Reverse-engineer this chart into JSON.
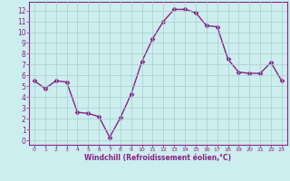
{
  "x": [
    0,
    1,
    2,
    3,
    4,
    5,
    6,
    7,
    8,
    9,
    10,
    11,
    12,
    13,
    14,
    15,
    16,
    17,
    18,
    19,
    20,
    21,
    22,
    23
  ],
  "y": [
    5.5,
    4.8,
    5.5,
    5.4,
    2.6,
    2.5,
    2.2,
    0.3,
    2.1,
    4.3,
    7.3,
    9.4,
    11.0,
    12.1,
    12.1,
    11.8,
    10.6,
    10.5,
    7.5,
    6.3,
    6.2,
    6.2,
    7.2,
    5.5
  ],
  "line_color": "#882288",
  "marker": "D",
  "marker_size": 2.5,
  "bg_color": "#cceeee",
  "grid_color": "#aacccc",
  "xlabel": "Windchill (Refroidissement éolien,°C)",
  "xlabel_color": "#882288",
  "tick_color": "#882288",
  "ylabel_ticks": [
    0,
    1,
    2,
    3,
    4,
    5,
    6,
    7,
    8,
    9,
    10,
    11,
    12
  ],
  "xlabel_ticks": [
    0,
    1,
    2,
    3,
    4,
    5,
    6,
    7,
    8,
    9,
    10,
    11,
    12,
    13,
    14,
    15,
    16,
    17,
    18,
    19,
    20,
    21,
    22,
    23
  ],
  "ylim": [
    -0.4,
    12.8
  ],
  "xlim": [
    -0.5,
    23.5
  ],
  "figsize": [
    3.2,
    2.0
  ],
  "dpi": 100
}
